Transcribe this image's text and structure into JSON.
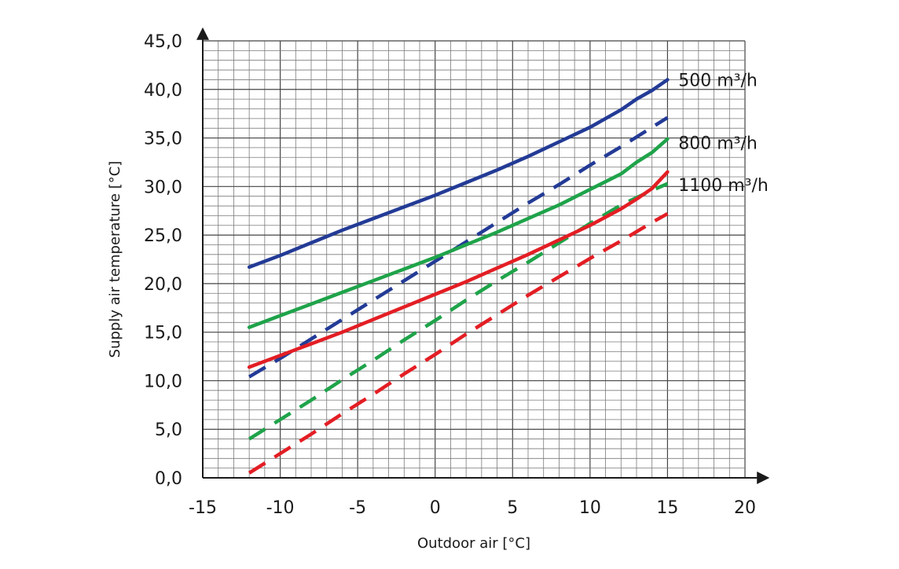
{
  "chart_data": {
    "type": "line",
    "xlabel": "Outdoor air [°C]",
    "ylabel": "Supply air temperature [°C]",
    "xlim": [
      -15,
      20
    ],
    "ylim": [
      0,
      45
    ],
    "x_ticks": [
      -15,
      -10,
      -5,
      0,
      5,
      10,
      15,
      20
    ],
    "x_tick_labels": [
      "-15",
      "-10",
      "-5",
      "0",
      "5",
      "10",
      "15",
      "20"
    ],
    "y_ticks": [
      0,
      5,
      10,
      15,
      20,
      25,
      30,
      35,
      40,
      45
    ],
    "y_tick_labels": [
      "0,0",
      "5,0",
      "10,0",
      "15,0",
      "20,0",
      "25,0",
      "30,0",
      "35,0",
      "40,0",
      "45,0"
    ],
    "grid": true,
    "grid_minor_x": 1,
    "grid_minor_y": 1,
    "legend_labels": [
      {
        "text": "500 m³/h",
        "color": "#233b96",
        "anchor_x": 15.7,
        "anchor_y": 41.0
      },
      {
        "text": "800 m³/h",
        "color": "#1fa34a",
        "anchor_x": 15.7,
        "anchor_y": 34.5
      },
      {
        "text": "1100 m³/h",
        "color": "#e31e24",
        "anchor_x": 15.7,
        "anchor_y": 30.2
      }
    ],
    "series": [
      {
        "color": "#233b96",
        "style": "solid",
        "x": [
          -12,
          -10,
          -8,
          -6,
          -4,
          -2,
          0,
          2,
          4,
          6,
          8,
          10,
          12,
          13,
          14,
          15
        ],
        "y": [
          21.7,
          22.9,
          24.2,
          25.5,
          26.7,
          27.9,
          29.1,
          30.4,
          31.7,
          33.1,
          34.6,
          36.1,
          37.9,
          39.0,
          39.9,
          41.0
        ]
      },
      {
        "color": "#233b96",
        "style": "dashed",
        "x": [
          -12,
          -10,
          -8,
          -6,
          -4,
          -2,
          0,
          2,
          4,
          6,
          8,
          10,
          12,
          14,
          15
        ],
        "y": [
          10.4,
          12.3,
          14.3,
          16.3,
          18.3,
          20.3,
          22.3,
          24.3,
          26.3,
          28.3,
          30.2,
          32.2,
          34.1,
          36.1,
          37.1
        ]
      },
      {
        "color": "#1fa34a",
        "style": "solid",
        "x": [
          -12,
          -10,
          -8,
          -6,
          -4,
          -2,
          0,
          2,
          4,
          6,
          8,
          10,
          12,
          13,
          14,
          15
        ],
        "y": [
          15.5,
          16.7,
          17.9,
          19.1,
          20.3,
          21.5,
          22.7,
          24.0,
          25.3,
          26.7,
          28.1,
          29.7,
          31.3,
          32.5,
          33.5,
          34.9
        ]
      },
      {
        "color": "#1fa34a",
        "style": "dashed",
        "x": [
          -12,
          -10,
          -8,
          -6,
          -4,
          -2,
          0,
          2,
          4,
          6,
          8,
          10,
          12,
          14,
          15
        ],
        "y": [
          4.0,
          6.0,
          8.0,
          10.1,
          12.1,
          14.2,
          16.2,
          18.3,
          20.3,
          22.2,
          24.2,
          26.2,
          28.1,
          29.6,
          30.3
        ]
      },
      {
        "color": "#e31e24",
        "style": "solid",
        "x": [
          -12,
          -10,
          -8,
          -6,
          -4,
          -2,
          0,
          2,
          4,
          6,
          8,
          10,
          12,
          13,
          14,
          15
        ],
        "y": [
          11.4,
          12.6,
          13.8,
          15.0,
          16.3,
          17.6,
          18.9,
          20.2,
          21.6,
          23.0,
          24.5,
          26.0,
          27.7,
          28.7,
          29.8,
          31.5
        ]
      },
      {
        "color": "#e31e24",
        "style": "dashed",
        "x": [
          -12,
          -10,
          -8,
          -6,
          -4,
          -2,
          0,
          2,
          4,
          6,
          8,
          10,
          12,
          14,
          15
        ],
        "y": [
          0.5,
          2.5,
          4.5,
          6.6,
          8.6,
          10.7,
          12.7,
          14.8,
          16.8,
          18.8,
          20.7,
          22.6,
          24.4,
          26.3,
          27.2
        ]
      }
    ]
  }
}
